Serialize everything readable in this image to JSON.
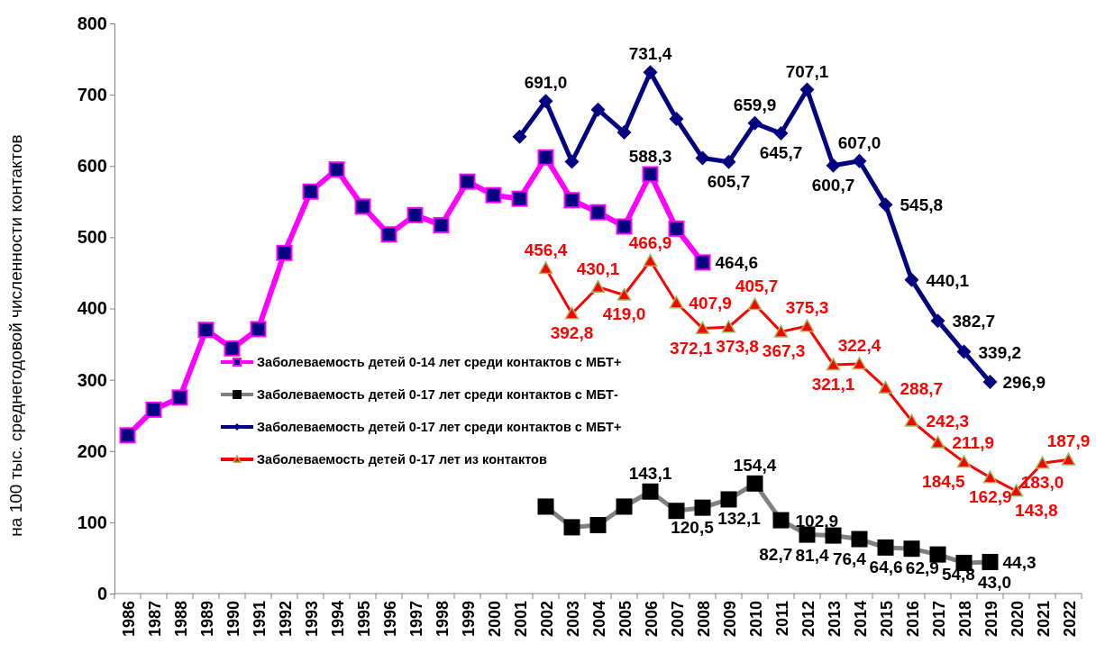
{
  "chart_data": {
    "type": "line",
    "ylabel": "на 100 тыс. среднегодовой численности контактов",
    "categories": [
      "1986",
      "1987",
      "1988",
      "1989",
      "1990",
      "1991",
      "1992",
      "1993",
      "1994",
      "1995",
      "1996",
      "1997",
      "1998",
      "1999",
      "2000",
      "2001",
      "2002",
      "2003",
      "2004",
      "2005",
      "2006",
      "2007",
      "2008",
      "2009",
      "2010",
      "2011",
      "2012",
      "2013",
      "2014",
      "2015",
      "2016",
      "2017",
      "2018",
      "2019",
      "2020",
      "2021",
      "2022"
    ],
    "ylim": [
      0,
      800
    ],
    "yticks": [
      0,
      100,
      200,
      300,
      400,
      500,
      600,
      700,
      800
    ],
    "grid": false,
    "legend": "left",
    "series": [
      {
        "name": "Заболеваемость детей 0-14 лет среди контактов с МБТ+",
        "color": "#ff00ff",
        "marker": "square",
        "values": [
          222,
          258,
          275,
          370,
          344,
          371,
          478,
          564,
          595,
          543,
          504,
          531,
          517,
          578,
          559,
          554,
          612,
          552,
          535,
          515,
          588.3,
          512,
          464.6,
          null,
          null,
          null,
          null,
          null,
          null,
          null,
          null,
          null,
          null,
          null,
          null,
          null,
          null
        ],
        "value_labels": [
          null,
          null,
          null,
          null,
          null,
          null,
          null,
          null,
          null,
          null,
          null,
          null,
          null,
          null,
          null,
          null,
          null,
          null,
          null,
          null,
          "588,3",
          null,
          "464,6",
          null,
          null,
          null,
          null,
          null,
          null,
          null,
          null,
          null,
          null,
          null,
          null,
          null,
          null
        ]
      },
      {
        "name": "Заболеваемость детей 0-17 лет среди контактов с МБТ-",
        "color": "#808080",
        "marker": "square",
        "values": [
          null,
          null,
          null,
          null,
          null,
          null,
          null,
          null,
          null,
          null,
          null,
          null,
          null,
          null,
          null,
          null,
          122,
          93,
          96,
          122,
          143.1,
          116,
          120.5,
          132.1,
          154.4,
          102.9,
          82.7,
          81.4,
          76.4,
          64.6,
          62.9,
          54.8,
          43.0,
          44.3,
          null,
          null,
          null
        ],
        "value_labels": [
          null,
          null,
          null,
          null,
          null,
          null,
          null,
          null,
          null,
          null,
          null,
          null,
          null,
          null,
          null,
          null,
          null,
          null,
          null,
          null,
          "143,1",
          null,
          "120,5",
          "132,1",
          "154,4",
          "102,9",
          "82,7",
          "81,4",
          "76,4",
          "64,6",
          "62,9",
          "54,8",
          "43,0",
          "44,3",
          null,
          null,
          null
        ]
      },
      {
        "name": "Заболеваемость детей 0-17 лет среди контактов с МБТ+",
        "color": "#000080",
        "marker": "diamond",
        "values": [
          null,
          null,
          null,
          null,
          null,
          null,
          null,
          null,
          null,
          null,
          null,
          null,
          null,
          null,
          null,
          641,
          691.0,
          606,
          679,
          647,
          731.4,
          666,
          611,
          605.7,
          659.9,
          645.7,
          707.1,
          600.7,
          607.0,
          545.8,
          440.1,
          382.7,
          339.2,
          296.9,
          null,
          null,
          null
        ],
        "value_labels": [
          null,
          null,
          null,
          null,
          null,
          null,
          null,
          null,
          null,
          null,
          null,
          null,
          null,
          null,
          null,
          null,
          "691,0",
          null,
          null,
          null,
          "731,4",
          null,
          null,
          "605,7",
          "659,9",
          "645,7",
          "707,1",
          "600,7",
          "607,0",
          "545,8",
          "440,1",
          "382,7",
          "339,2",
          "296,9",
          null,
          null,
          null
        ]
      },
      {
        "name": "Заболеваемость детей 0-17 лет из контактов",
        "color": "#ff0000",
        "marker": "triangle",
        "values": [
          null,
          null,
          null,
          null,
          null,
          null,
          null,
          null,
          null,
          null,
          null,
          null,
          null,
          null,
          null,
          null,
          456.4,
          392.8,
          430.1,
          419.0,
          466.9,
          407.9,
          372.1,
          373.8,
          405.7,
          367.3,
          375.3,
          321.1,
          322.4,
          288.7,
          242.3,
          211.9,
          184.5,
          162.9,
          143.8,
          183.0,
          187.9
        ],
        "value_labels": [
          null,
          null,
          null,
          null,
          null,
          null,
          null,
          null,
          null,
          null,
          null,
          null,
          null,
          null,
          null,
          null,
          "456,4",
          "392,8",
          "430,1",
          "419,0",
          "466,9",
          "407,9",
          "372,1",
          "373,8",
          "405,7",
          "367,3",
          "375,3",
          "321,1",
          "322,4",
          "288,7",
          "242,3",
          "211,9",
          "184,5",
          "162,9",
          "143,8",
          "183,0",
          "187,9"
        ]
      }
    ]
  }
}
